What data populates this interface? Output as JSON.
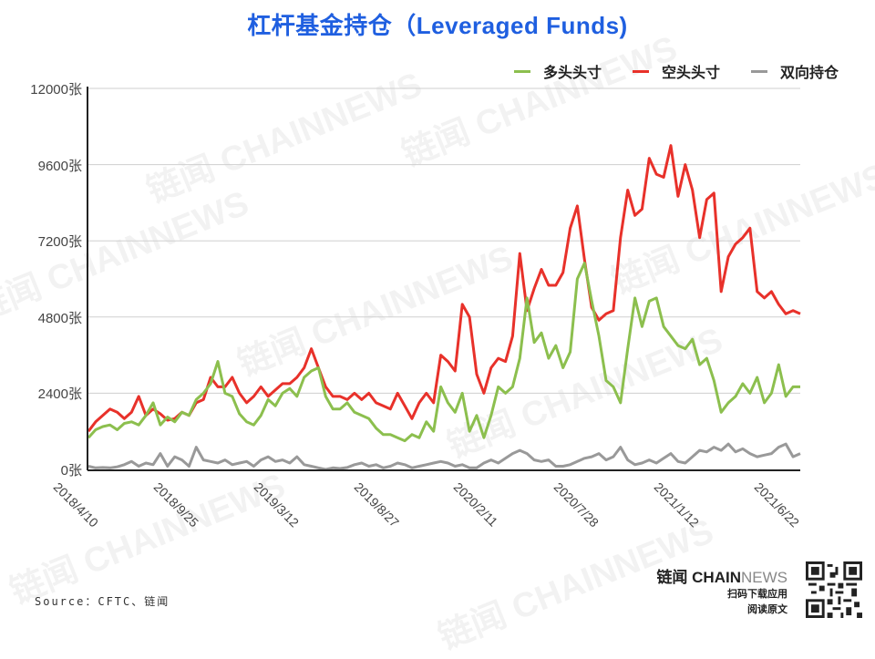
{
  "title": "杠杆基金持仓（Leveraged Funds)",
  "legend": [
    {
      "label": "多头头寸",
      "color": "#8cbf4e"
    },
    {
      "label": "空头头寸",
      "color": "#e8312a"
    },
    {
      "label": "双向持仓",
      "color": "#999999"
    }
  ],
  "source": "Source：CFTC、链闻",
  "brand": {
    "name_bold": "链闻 CHAIN",
    "name_light": "NEWS",
    "line1": "扫码下载应用",
    "line2": "阅读原文"
  },
  "watermark": "链闻 CHAINNEWS",
  "chart_data": {
    "type": "line",
    "title": "杠杆基金持仓（Leveraged Funds)",
    "xlabel": "",
    "ylabel": "张",
    "ylim": [
      0,
      12000
    ],
    "yticks": [
      "0张",
      "2400张",
      "4800张",
      "7200张",
      "9600张",
      "12000张"
    ],
    "xticks": [
      "2018/4/10",
      "2018/9/25",
      "2019/3/12",
      "2019/8/27",
      "2020/2/11",
      "2020/7/28",
      "2021/1/12",
      "2021/6/22"
    ],
    "grid": true,
    "legend_position": "top-right",
    "x_interval_weeks": 2,
    "series": [
      {
        "name": "多头头寸",
        "color": "#8cbf4e",
        "values": [
          1000,
          1250,
          1350,
          1400,
          1250,
          1450,
          1500,
          1400,
          1700,
          2100,
          1400,
          1650,
          1500,
          1800,
          1700,
          2200,
          2400,
          2700,
          3400,
          2400,
          2300,
          1750,
          1500,
          1400,
          1700,
          2200,
          2000,
          2400,
          2550,
          2300,
          2900,
          3100,
          3200,
          2300,
          1900,
          1900,
          2100,
          1800,
          1700,
          1600,
          1300,
          1100,
          1100,
          1000,
          900,
          1100,
          1000,
          1500,
          1200,
          2600,
          2100,
          1800,
          2400,
          1200,
          1700,
          1000,
          1700,
          2600,
          2400,
          2600,
          3500,
          5400,
          4000,
          4300,
          3500,
          3900,
          3200,
          3700,
          6000,
          6500,
          5300,
          4200,
          2800,
          2600,
          2100,
          3800,
          5400,
          4500,
          5300,
          5400,
          4500,
          4200,
          3900,
          3800,
          4100,
          3300,
          3500,
          2800,
          1800,
          2100,
          2300,
          2700,
          2400,
          2900,
          2100,
          2400,
          3300,
          2300,
          2600,
          2600
        ]
      },
      {
        "name": "空头头寸",
        "color": "#e8312a",
        "values": [
          1200,
          1500,
          1700,
          1900,
          1800,
          1600,
          1800,
          2300,
          1700,
          1900,
          1750,
          1550,
          1600,
          1800,
          1700,
          2100,
          2200,
          2900,
          2600,
          2600,
          2900,
          2400,
          2100,
          2300,
          2600,
          2300,
          2500,
          2700,
          2700,
          2900,
          3200,
          3800,
          3200,
          2600,
          2300,
          2300,
          2200,
          2400,
          2200,
          2400,
          2100,
          2000,
          1900,
          2400,
          2000,
          1600,
          2100,
          2400,
          2100,
          3600,
          3400,
          3100,
          5200,
          4800,
          3000,
          2400,
          3200,
          3500,
          3400,
          4200,
          6800,
          5000,
          5700,
          6300,
          5800,
          5800,
          6200,
          7600,
          8300,
          6600,
          5100,
          4700,
          4900,
          5000,
          7300,
          8800,
          8000,
          8200,
          9800,
          9300,
          9200,
          10200,
          8600,
          9600,
          8800,
          7300,
          8500,
          8700,
          5600,
          6700,
          7100,
          7300,
          7600,
          5600,
          5400,
          5600,
          5200,
          4900,
          5000,
          4900
        ]
      },
      {
        "name": "双向持仓",
        "color": "#999999",
        "values": [
          100,
          50,
          60,
          50,
          80,
          150,
          250,
          100,
          200,
          150,
          500,
          100,
          400,
          300,
          100,
          700,
          300,
          250,
          200,
          300,
          150,
          200,
          250,
          100,
          300,
          400,
          250,
          300,
          200,
          400,
          150,
          100,
          50,
          0,
          50,
          30,
          60,
          150,
          200,
          100,
          150,
          50,
          100,
          200,
          150,
          50,
          100,
          150,
          200,
          250,
          200,
          100,
          150,
          50,
          50,
          200,
          300,
          200,
          350,
          500,
          600,
          500,
          300,
          250,
          300,
          100,
          100,
          150,
          250,
          350,
          400,
          500,
          300,
          400,
          700,
          300,
          150,
          200,
          300,
          200,
          350,
          500,
          250,
          200,
          400,
          600,
          550,
          700,
          600,
          800,
          550,
          650,
          500,
          400,
          450,
          500,
          700,
          800,
          400,
          500
        ]
      }
    ]
  }
}
